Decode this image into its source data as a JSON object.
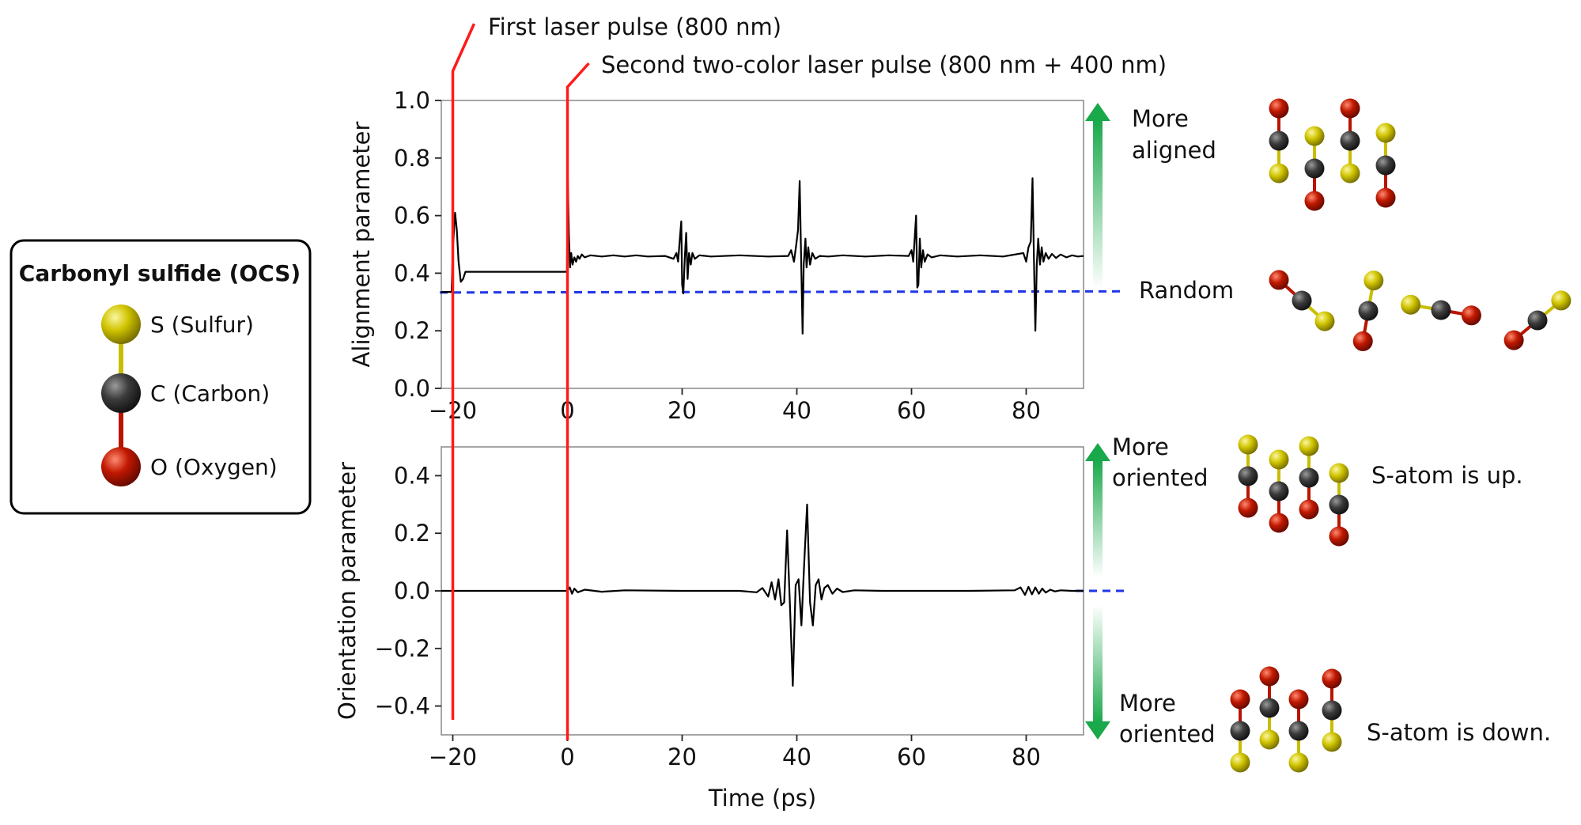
{
  "colors": {
    "sulfur": "#c9bd00",
    "carbon": "#3a3a3a",
    "oxygen": "#b81400",
    "pulse_line": "#ff1a1a",
    "random_line": "#1f35e6",
    "arrow": "#19a84a",
    "trace": "#000000"
  },
  "legend": {
    "title": "Carbonyl sulfide (OCS)",
    "items": [
      {
        "atom": "sulfur",
        "label": "S (Sulfur)"
      },
      {
        "atom": "carbon",
        "label": "C (Carbon)"
      },
      {
        "atom": "oxygen",
        "label": "O (Oxygen)"
      }
    ]
  },
  "annotations": {
    "first_pulse": "First laser pulse (800 nm)",
    "second_pulse": "Second two-color laser pulse (800 nm + 400 nm)",
    "more_aligned": [
      "More",
      "aligned"
    ],
    "random": "Random",
    "more_oriented_up": [
      "More",
      "oriented"
    ],
    "more_oriented_down": [
      "More",
      "oriented"
    ],
    "s_up": "S-atom is up.",
    "s_down": "S-atom is down."
  },
  "chart_data": [
    {
      "type": "line",
      "title": "",
      "xlabel": "",
      "ylabel": "Alignment parameter",
      "xlim": [
        -22,
        90
      ],
      "ylim": [
        0.0,
        1.0
      ],
      "xticks": [
        -20,
        0,
        20,
        40,
        60,
        80
      ],
      "xtick_labels": [
        "−20",
        "0",
        "20",
        "40",
        "60",
        "80"
      ],
      "yticks": [
        0.0,
        0.2,
        0.4,
        0.6,
        0.8,
        1.0
      ],
      "ytick_labels": [
        "0.0",
        "0.2",
        "0.4",
        "0.6",
        "0.8",
        "1.0"
      ],
      "reference_lines": {
        "random": 0.333,
        "pulses_ps": [
          -20,
          0
        ]
      },
      "series": [
        {
          "name": "alignment",
          "x": [
            -22,
            -20.2,
            -20,
            -19.6,
            -19.3,
            -19.0,
            -18.6,
            -18.2,
            -17.8,
            -17.2,
            -16.5,
            -10,
            -5,
            -0.5,
            -0.1,
            0.05,
            0.25,
            0.45,
            0.65,
            0.9,
            1.2,
            1.5,
            1.8,
            2.1,
            2.5,
            3,
            4,
            6,
            8,
            10,
            12,
            14,
            17,
            18.5,
            19.0,
            19.3,
            19.6,
            19.85,
            20.0,
            20.2,
            20.45,
            20.7,
            20.95,
            21.2,
            21.5,
            21.8,
            22.2,
            23,
            25,
            30,
            35,
            38.5,
            39.0,
            39.5,
            39.9,
            40.2,
            40.5,
            40.8,
            41.0,
            41.2,
            41.5,
            41.7,
            42.0,
            42.3,
            42.7,
            43.2,
            44,
            45.5,
            48,
            52,
            56,
            59.5,
            60.0,
            60.3,
            60.55,
            60.8,
            61.0,
            61.2,
            61.45,
            61.7,
            62.0,
            62.3,
            62.8,
            63.5,
            65,
            68,
            72,
            76,
            79.5,
            80.0,
            80.4,
            80.8,
            81.1,
            81.35,
            81.6,
            81.85,
            82.1,
            82.4,
            82.7,
            83.0,
            83.4,
            83.9,
            84.5,
            85.2,
            86,
            87,
            88,
            89,
            90
          ],
          "values": [
            0.335,
            0.335,
            0.48,
            0.61,
            0.55,
            0.44,
            0.37,
            0.38,
            0.405,
            0.405,
            0.405,
            0.405,
            0.405,
            0.405,
            0.405,
            0.73,
            0.53,
            0.42,
            0.47,
            0.43,
            0.455,
            0.44,
            0.46,
            0.45,
            0.465,
            0.455,
            0.462,
            0.458,
            0.462,
            0.458,
            0.462,
            0.458,
            0.46,
            0.45,
            0.47,
            0.44,
            0.52,
            0.58,
            0.36,
            0.33,
            0.45,
            0.54,
            0.38,
            0.47,
            0.43,
            0.47,
            0.45,
            0.462,
            0.458,
            0.462,
            0.458,
            0.46,
            0.48,
            0.44,
            0.5,
            0.55,
            0.72,
            0.4,
            0.19,
            0.43,
            0.52,
            0.42,
            0.49,
            0.43,
            0.47,
            0.45,
            0.46,
            0.458,
            0.462,
            0.458,
            0.462,
            0.46,
            0.48,
            0.44,
            0.52,
            0.6,
            0.35,
            0.36,
            0.52,
            0.42,
            0.48,
            0.44,
            0.465,
            0.455,
            0.462,
            0.458,
            0.462,
            0.458,
            0.47,
            0.44,
            0.49,
            0.51,
            0.73,
            0.45,
            0.2,
            0.43,
            0.52,
            0.43,
            0.49,
            0.44,
            0.47,
            0.45,
            0.467,
            0.453,
            0.465,
            0.455,
            0.462,
            0.458,
            0.46
          ]
        }
      ]
    },
    {
      "type": "line",
      "title": "",
      "xlabel": "Time (ps)",
      "ylabel": "Orientation parameter",
      "xlim": [
        -22,
        90
      ],
      "ylim": [
        -0.5,
        0.5
      ],
      "xticks": [
        -20,
        0,
        20,
        40,
        60,
        80
      ],
      "xtick_labels": [
        "−20",
        "0",
        "20",
        "40",
        "60",
        "80"
      ],
      "yticks": [
        -0.4,
        -0.2,
        0.0,
        0.2,
        0.4
      ],
      "ytick_labels": [
        "−0.4",
        "−0.2",
        "0.0",
        "0.2",
        "0.4"
      ],
      "reference_lines": {
        "random": 0.0,
        "pulses_ps": [
          -20,
          0
        ]
      },
      "series": [
        {
          "name": "orientation",
          "x": [
            -22,
            -1,
            0,
            0.4,
            0.8,
            1.2,
            1.8,
            3,
            6,
            10,
            20,
            30,
            33,
            34,
            35,
            35.6,
            36.2,
            36.8,
            37.3,
            37.8,
            38.3,
            38.8,
            39.3,
            39.8,
            40.3,
            40.8,
            41.3,
            41.8,
            42.3,
            42.8,
            43.3,
            43.8,
            44.3,
            44.8,
            45.4,
            46.2,
            47,
            48,
            50,
            55,
            60,
            70,
            78,
            79,
            79.8,
            80.4,
            81.0,
            81.6,
            82.2,
            82.8,
            83.4,
            84.2,
            85,
            86,
            88,
            90
          ],
          "values": [
            0.0,
            0.0,
            0.0,
            0.012,
            -0.01,
            0.008,
            -0.005,
            0.004,
            -0.003,
            0.002,
            0.0,
            0.0,
            -0.005,
            0.01,
            -0.02,
            0.03,
            -0.03,
            0.04,
            -0.05,
            -0.04,
            0.21,
            -0.05,
            -0.33,
            0.02,
            0.04,
            -0.12,
            0.1,
            0.3,
            -0.04,
            -0.12,
            0.02,
            0.04,
            -0.03,
            0.01,
            0.02,
            -0.01,
            0.008,
            -0.004,
            0.002,
            0.0,
            0.0,
            0.0,
            0.002,
            0.012,
            -0.014,
            0.014,
            -0.012,
            0.012,
            -0.01,
            0.008,
            -0.006,
            0.004,
            -0.002,
            0.002,
            0.0,
            0.0
          ]
        }
      ]
    }
  ]
}
